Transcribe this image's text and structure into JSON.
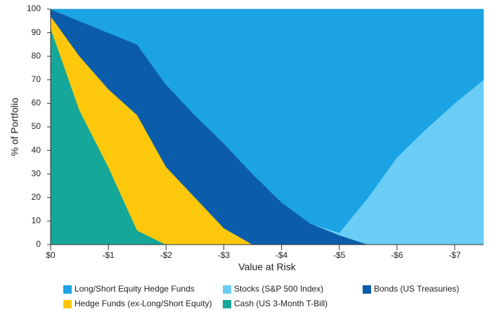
{
  "chart_data": {
    "type": "stacked_area",
    "x_label": "Value at Risk",
    "y_label": "% of Portfolio",
    "x": [
      0,
      -0.5,
      -1,
      -1.5,
      -2,
      -2.5,
      -3,
      -3.5,
      -4,
      -4.5,
      -5,
      -5.5,
      -6,
      -6.5,
      -7,
      -7.5
    ],
    "xlim": [
      0,
      -7.5
    ],
    "xticks": [
      {
        "value": 0,
        "label": "$0"
      },
      {
        "value": -1,
        "label": "-$1"
      },
      {
        "value": -2,
        "label": "-$2"
      },
      {
        "value": -3,
        "label": "-$3"
      },
      {
        "value": -4,
        "label": "-$4"
      },
      {
        "value": -5,
        "label": "-$5"
      },
      {
        "value": -6,
        "label": "-$6"
      },
      {
        "value": -7,
        "label": "-$7"
      }
    ],
    "ylim": [
      0,
      100
    ],
    "yticks": [
      0,
      10,
      20,
      30,
      40,
      50,
      60,
      70,
      80,
      90,
      100
    ],
    "stack_order": "reverse",
    "series": [
      {
        "name": "Long/Short Equity Hedge Funds",
        "color": "#1ba3e3",
        "values": [
          0,
          5,
          10,
          15,
          32,
          45,
          57,
          70,
          82,
          91,
          95,
          80,
          63,
          51,
          40,
          30
        ]
      },
      {
        "name": "Stocks (S&P 500 Index)",
        "color": "#69cdf5",
        "values": [
          0,
          0,
          0,
          0,
          0,
          0,
          0,
          0,
          0,
          0,
          1,
          20,
          37,
          49,
          60,
          70
        ]
      },
      {
        "name": "Bonds (US Treasuries)",
        "color": "#0b5dab",
        "values": [
          3,
          15,
          24,
          30,
          35,
          35,
          36,
          30,
          18,
          9,
          4,
          0,
          0,
          0,
          0,
          0
        ]
      },
      {
        "name": "Hedge Funds (ex-Long/Short Equity)",
        "color": "#fdc80c",
        "values": [
          5,
          23,
          33,
          49,
          33,
          20,
          7,
          0,
          0,
          0,
          0,
          0,
          0,
          0,
          0,
          0
        ]
      },
      {
        "name": "Cash (US 3-Month T-Bill)",
        "color": "#14a79a",
        "values": [
          92,
          57,
          33,
          6,
          0,
          0,
          0,
          0,
          0,
          0,
          0,
          0,
          0,
          0,
          0,
          0
        ]
      }
    ]
  }
}
